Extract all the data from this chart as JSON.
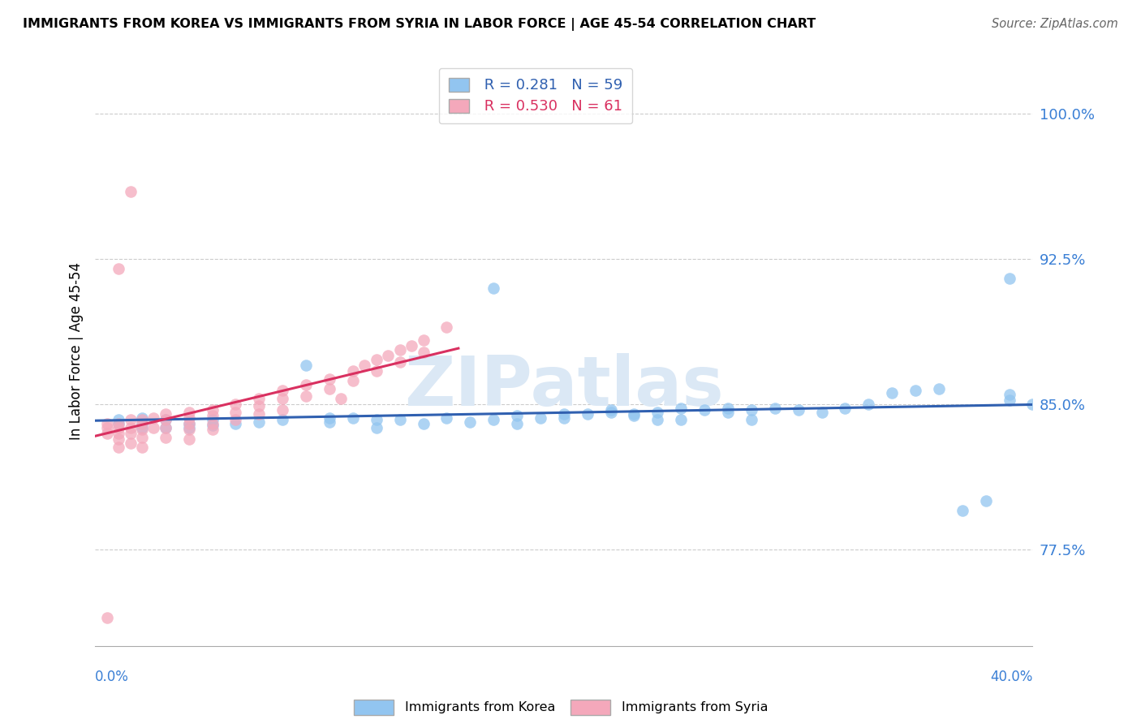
{
  "title": "IMMIGRANTS FROM KOREA VS IMMIGRANTS FROM SYRIA IN LABOR FORCE | AGE 45-54 CORRELATION CHART",
  "source": "Source: ZipAtlas.com",
  "ylabel": "In Labor Force | Age 45-54",
  "yticks": [
    "77.5%",
    "85.0%",
    "92.5%",
    "100.0%"
  ],
  "ytick_values": [
    0.775,
    0.85,
    0.925,
    1.0
  ],
  "xlim": [
    0.0,
    0.4
  ],
  "ylim": [
    0.725,
    1.03
  ],
  "korea_R": "0.281",
  "korea_N": "59",
  "syria_R": "0.530",
  "syria_N": "61",
  "korea_color": "#92c5f0",
  "syria_color": "#f4a8bb",
  "korea_line_color": "#3060b0",
  "syria_line_color": "#d93060",
  "watermark": "ZIPatlas",
  "korea_x": [
    0.01,
    0.01,
    0.02,
    0.02,
    0.02,
    0.03,
    0.03,
    0.04,
    0.04,
    0.05,
    0.05,
    0.06,
    0.07,
    0.08,
    0.09,
    0.1,
    0.1,
    0.11,
    0.12,
    0.12,
    0.13,
    0.14,
    0.15,
    0.16,
    0.17,
    0.17,
    0.18,
    0.18,
    0.19,
    0.2,
    0.2,
    0.21,
    0.22,
    0.22,
    0.23,
    0.23,
    0.24,
    0.24,
    0.25,
    0.25,
    0.26,
    0.27,
    0.27,
    0.28,
    0.28,
    0.29,
    0.3,
    0.31,
    0.32,
    0.33,
    0.34,
    0.35,
    0.36,
    0.37,
    0.38,
    0.39,
    0.39,
    0.39,
    0.4
  ],
  "korea_y": [
    0.842,
    0.84,
    0.843,
    0.84,
    0.838,
    0.842,
    0.838,
    0.84,
    0.838,
    0.842,
    0.839,
    0.84,
    0.841,
    0.842,
    0.87,
    0.843,
    0.841,
    0.843,
    0.842,
    0.838,
    0.842,
    0.84,
    0.843,
    0.841,
    0.91,
    0.842,
    0.844,
    0.84,
    0.843,
    0.845,
    0.843,
    0.845,
    0.847,
    0.846,
    0.845,
    0.844,
    0.846,
    0.842,
    0.848,
    0.842,
    0.847,
    0.848,
    0.846,
    0.847,
    0.842,
    0.848,
    0.847,
    0.846,
    0.848,
    0.85,
    0.856,
    0.857,
    0.858,
    0.795,
    0.8,
    0.855,
    0.915,
    0.852,
    0.85
  ],
  "syria_x": [
    0.005,
    0.005,
    0.005,
    0.01,
    0.01,
    0.01,
    0.01,
    0.01,
    0.015,
    0.015,
    0.015,
    0.015,
    0.02,
    0.02,
    0.02,
    0.02,
    0.02,
    0.025,
    0.025,
    0.03,
    0.03,
    0.03,
    0.03,
    0.04,
    0.04,
    0.04,
    0.04,
    0.04,
    0.05,
    0.05,
    0.05,
    0.05,
    0.06,
    0.06,
    0.06,
    0.07,
    0.07,
    0.07,
    0.08,
    0.08,
    0.08,
    0.09,
    0.09,
    0.1,
    0.1,
    0.105,
    0.11,
    0.11,
    0.115,
    0.12,
    0.12,
    0.125,
    0.13,
    0.13,
    0.135,
    0.14,
    0.14,
    0.15,
    0.015,
    0.01,
    0.005
  ],
  "syria_y": [
    0.84,
    0.838,
    0.835,
    0.84,
    0.838,
    0.835,
    0.832,
    0.828,
    0.842,
    0.838,
    0.835,
    0.83,
    0.842,
    0.84,
    0.837,
    0.833,
    0.828,
    0.843,
    0.838,
    0.845,
    0.842,
    0.838,
    0.833,
    0.846,
    0.843,
    0.84,
    0.837,
    0.832,
    0.847,
    0.844,
    0.84,
    0.837,
    0.85,
    0.846,
    0.842,
    0.853,
    0.849,
    0.845,
    0.857,
    0.853,
    0.847,
    0.86,
    0.854,
    0.863,
    0.858,
    0.853,
    0.867,
    0.862,
    0.87,
    0.873,
    0.867,
    0.875,
    0.878,
    0.872,
    0.88,
    0.883,
    0.877,
    0.89,
    0.96,
    0.92,
    0.74
  ]
}
